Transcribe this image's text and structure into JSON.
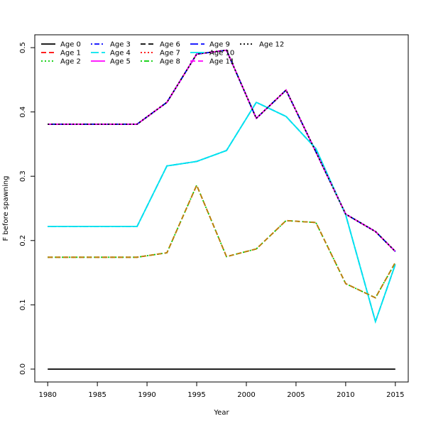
{
  "chart_data": {
    "type": "line",
    "title": "",
    "xlabel": "Year",
    "ylabel": "F before spawning",
    "xlim": [
      1978.7,
      2016.3
    ],
    "ylim": [
      -0.02,
      0.52
    ],
    "xticks": [
      1980,
      1985,
      1990,
      1995,
      2000,
      2005,
      2010,
      2015
    ],
    "xtick_labels": [
      "1980",
      "1985",
      "1990",
      "1995",
      "2000",
      "2005",
      "2010",
      "2015"
    ],
    "yticks": [
      0.0,
      0.1,
      0.2,
      0.3,
      0.4,
      0.5
    ],
    "ytick_labels": [
      "0.0",
      "0.1",
      "0.2",
      "0.3",
      "0.4",
      "0.5"
    ],
    "grid": false,
    "legend_position": "top-left",
    "x": [
      1980,
      1983,
      1986,
      1989,
      1992,
      1995,
      1998,
      2001,
      2004,
      2007,
      2010,
      2013,
      2015
    ],
    "series": [
      {
        "name": "Age 0",
        "color": "#000000",
        "dash": "solid",
        "values": [
          0,
          0,
          0,
          0,
          0,
          0,
          0,
          0,
          0,
          0,
          0,
          0,
          0
        ]
      },
      {
        "name": "Age 1",
        "color": "#ff0000",
        "dash": "dashed",
        "values": [
          0.174,
          0.174,
          0.174,
          0.174,
          0.181,
          0.286,
          0.175,
          0.187,
          0.231,
          0.228,
          0.133,
          0.111,
          0.166
        ]
      },
      {
        "name": "Age 2",
        "color": "#00cd00",
        "dash": "dotted",
        "values": [
          0.174,
          0.174,
          0.174,
          0.174,
          0.181,
          0.286,
          0.175,
          0.187,
          0.231,
          0.228,
          0.133,
          0.111,
          0.166
        ]
      },
      {
        "name": "Age 3",
        "color": "#0000ff",
        "dash": "dotdash",
        "values": [
          0.222,
          0.222,
          0.222,
          0.222,
          0.316,
          0.323,
          0.34,
          0.415,
          0.393,
          0.343,
          0.24,
          0.074,
          0.163
        ]
      },
      {
        "name": "Age 4",
        "color": "#00e5ee",
        "dash": "longdash",
        "values": [
          0.222,
          0.222,
          0.222,
          0.222,
          0.316,
          0.323,
          0.34,
          0.415,
          0.393,
          0.343,
          0.24,
          0.074,
          0.163
        ]
      },
      {
        "name": "Age 5",
        "color": "#ff00ff",
        "dash": "solid",
        "values": [
          0.381,
          0.381,
          0.381,
          0.381,
          0.415,
          0.49,
          0.496,
          0.39,
          0.434,
          0.338,
          0.241,
          0.214,
          0.183
        ]
      },
      {
        "name": "Age 6",
        "color": "#000000",
        "dash": "dashed",
        "values": [
          0.381,
          0.381,
          0.381,
          0.381,
          0.415,
          0.49,
          0.496,
          0.39,
          0.434,
          0.338,
          0.241,
          0.214,
          0.183
        ]
      },
      {
        "name": "Age 7",
        "color": "#ff0000",
        "dash": "dotted",
        "values": [
          0.381,
          0.381,
          0.381,
          0.381,
          0.415,
          0.49,
          0.496,
          0.39,
          0.434,
          0.338,
          0.241,
          0.214,
          0.183
        ]
      },
      {
        "name": "Age 8",
        "color": "#00cd00",
        "dash": "dotdash",
        "values": [
          0.381,
          0.381,
          0.381,
          0.381,
          0.415,
          0.49,
          0.496,
          0.39,
          0.434,
          0.338,
          0.241,
          0.214,
          0.183
        ]
      },
      {
        "name": "Age 9",
        "color": "#0000ff",
        "dash": "longdash",
        "values": [
          0.381,
          0.381,
          0.381,
          0.381,
          0.415,
          0.49,
          0.496,
          0.39,
          0.434,
          0.338,
          0.241,
          0.214,
          0.183
        ]
      },
      {
        "name": "Age 10",
        "color": "#00e5ee",
        "dash": "solid",
        "values": [
          0.222,
          0.222,
          0.222,
          0.222,
          0.316,
          0.323,
          0.34,
          0.415,
          0.393,
          0.343,
          0.24,
          0.074,
          0.163
        ]
      },
      {
        "name": "Age 11",
        "color": "#ff00ff",
        "dash": "dashed",
        "values": [
          0.381,
          0.381,
          0.381,
          0.381,
          0.415,
          0.49,
          0.496,
          0.39,
          0.434,
          0.338,
          0.241,
          0.214,
          0.183
        ]
      },
      {
        "name": "Age 12",
        "color": "#000000",
        "dash": "dotted",
        "values": [
          0.381,
          0.381,
          0.381,
          0.381,
          0.415,
          0.49,
          0.496,
          0.39,
          0.434,
          0.338,
          0.241,
          0.214,
          0.183
        ]
      },
      {
        "name": "",
        "color": "#b8860b",
        "dash": "dashed",
        "values": [
          0.174,
          0.174,
          0.174,
          0.174,
          0.181,
          0.286,
          0.175,
          0.187,
          0.231,
          0.228,
          0.133,
          0.111,
          0.166
        ]
      }
    ]
  }
}
